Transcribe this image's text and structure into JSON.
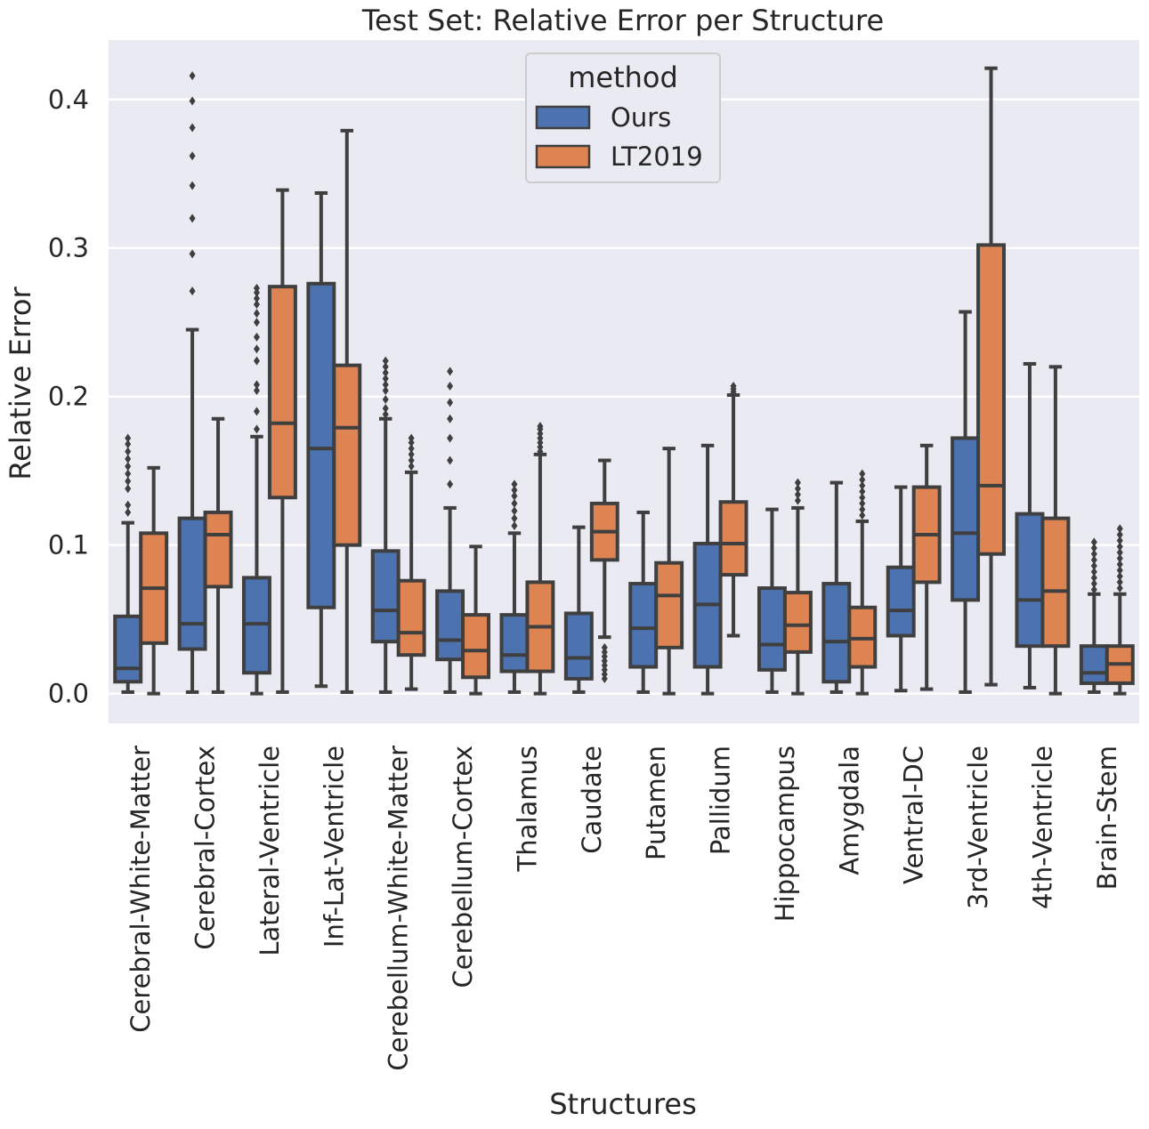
{
  "chart_data": {
    "type": "box",
    "title": "Test Set: Relative Error per Structure",
    "xlabel": "Structures",
    "ylabel": "Relative Error",
    "ylim": [
      -0.02,
      0.44
    ],
    "yticks": [
      0.0,
      0.1,
      0.2,
      0.3,
      0.4
    ],
    "ytick_labels": [
      "0.0",
      "0.1",
      "0.2",
      "0.3",
      "0.4"
    ],
    "grid": true,
    "legend": {
      "title": "method",
      "placement": "top-center",
      "entries": [
        "Ours",
        "LT2019"
      ]
    },
    "colors": {
      "Ours": "#4c72b0",
      "LT2019": "#dd8452",
      "background": "#eaeaf2",
      "line": "#3f3f3f"
    },
    "categories": [
      "Cerebral-White-Matter",
      "Cerebral-Cortex",
      "Lateral-Ventricle",
      "Inf-Lat-Ventricle",
      "Cerebellum-White-Matter",
      "Cerebellum-Cortex",
      "Thalamus",
      "Caudate",
      "Putamen",
      "Pallidum",
      "Hippocampus",
      "Amygdala",
      "Ventral-DC",
      "3rd-Ventricle",
      "4th-Ventricle",
      "Brain-Stem"
    ],
    "series": [
      {
        "name": "Ours",
        "boxes": [
          {
            "whislo": 0.001,
            "q1": 0.008,
            "med": 0.017,
            "q3": 0.052,
            "whishi": 0.115,
            "fliers": [
              0.122,
              0.127,
              0.138,
              0.143,
              0.148,
              0.153,
              0.158,
              0.163,
              0.168,
              0.172
            ]
          },
          {
            "whislo": 0.001,
            "q1": 0.03,
            "med": 0.047,
            "q3": 0.118,
            "whishi": 0.245,
            "fliers": [
              0.271,
              0.296,
              0.32,
              0.342,
              0.362,
              0.381,
              0.399,
              0.416
            ]
          },
          {
            "whislo": 0.0,
            "q1": 0.014,
            "med": 0.047,
            "q3": 0.078,
            "whishi": 0.173,
            "fliers": [
              0.178,
              0.19,
              0.204,
              0.208,
              0.224,
              0.232,
              0.24,
              0.25,
              0.256,
              0.262,
              0.266,
              0.27,
              0.273
            ]
          },
          {
            "whislo": 0.005,
            "q1": 0.058,
            "med": 0.165,
            "q3": 0.276,
            "whishi": 0.337,
            "fliers": []
          },
          {
            "whislo": 0.001,
            "q1": 0.035,
            "med": 0.056,
            "q3": 0.096,
            "whishi": 0.185,
            "fliers": [
              0.188,
              0.192,
              0.198,
              0.204,
              0.208,
              0.212,
              0.216,
              0.22,
              0.224
            ]
          },
          {
            "whislo": 0.001,
            "q1": 0.023,
            "med": 0.036,
            "q3": 0.069,
            "whishi": 0.125,
            "fliers": [
              0.141,
              0.157,
              0.172,
              0.185,
              0.196,
              0.207,
              0.217
            ]
          },
          {
            "whislo": 0.001,
            "q1": 0.015,
            "med": 0.026,
            "q3": 0.053,
            "whishi": 0.108,
            "fliers": [
              0.113,
              0.118,
              0.123,
              0.128,
              0.133,
              0.137,
              0.141
            ]
          },
          {
            "whislo": 0.001,
            "q1": 0.01,
            "med": 0.024,
            "q3": 0.054,
            "whishi": 0.112,
            "fliers": []
          },
          {
            "whislo": 0.001,
            "q1": 0.018,
            "med": 0.044,
            "q3": 0.074,
            "whishi": 0.122,
            "fliers": []
          },
          {
            "whislo": 0.0,
            "q1": 0.018,
            "med": 0.06,
            "q3": 0.101,
            "whishi": 0.167,
            "fliers": []
          },
          {
            "whislo": 0.001,
            "q1": 0.016,
            "med": 0.033,
            "q3": 0.071,
            "whishi": 0.124,
            "fliers": []
          },
          {
            "whislo": 0.001,
            "q1": 0.008,
            "med": 0.035,
            "q3": 0.074,
            "whishi": 0.142,
            "fliers": []
          },
          {
            "whislo": 0.002,
            "q1": 0.039,
            "med": 0.056,
            "q3": 0.085,
            "whishi": 0.139,
            "fliers": []
          },
          {
            "whislo": 0.001,
            "q1": 0.063,
            "med": 0.108,
            "q3": 0.172,
            "whishi": 0.257,
            "fliers": []
          },
          {
            "whislo": 0.004,
            "q1": 0.032,
            "med": 0.063,
            "q3": 0.121,
            "whishi": 0.222,
            "fliers": []
          },
          {
            "whislo": 0.001,
            "q1": 0.007,
            "med": 0.014,
            "q3": 0.032,
            "whishi": 0.067,
            "fliers": [
              0.07,
              0.074,
              0.078,
              0.082,
              0.086,
              0.09,
              0.094,
              0.098,
              0.102
            ]
          }
        ]
      },
      {
        "name": "LT2019",
        "boxes": [
          {
            "whislo": 0.0,
            "q1": 0.034,
            "med": 0.071,
            "q3": 0.108,
            "whishi": 0.152,
            "fliers": []
          },
          {
            "whislo": 0.001,
            "q1": 0.072,
            "med": 0.107,
            "q3": 0.122,
            "whishi": 0.185,
            "fliers": []
          },
          {
            "whislo": 0.001,
            "q1": 0.132,
            "med": 0.182,
            "q3": 0.274,
            "whishi": 0.339,
            "fliers": []
          },
          {
            "whislo": 0.001,
            "q1": 0.1,
            "med": 0.179,
            "q3": 0.221,
            "whishi": 0.379,
            "fliers": []
          },
          {
            "whislo": 0.003,
            "q1": 0.026,
            "med": 0.041,
            "q3": 0.076,
            "whishi": 0.149,
            "fliers": [
              0.153,
              0.157,
              0.161,
              0.165,
              0.169,
              0.172
            ]
          },
          {
            "whislo": 0.0,
            "q1": 0.011,
            "med": 0.029,
            "q3": 0.053,
            "whishi": 0.099,
            "fliers": []
          },
          {
            "whislo": 0.0,
            "q1": 0.015,
            "med": 0.045,
            "q3": 0.075,
            "whishi": 0.161,
            "fliers": [
              0.163,
              0.166,
              0.169,
              0.172,
              0.175,
              0.178,
              0.18
            ]
          },
          {
            "whislo": 0.038,
            "q1": 0.09,
            "med": 0.109,
            "q3": 0.128,
            "whishi": 0.157,
            "fliers": [
              0.01,
              0.013,
              0.016,
              0.019,
              0.022,
              0.025,
              0.028,
              0.031
            ]
          },
          {
            "whislo": 0.0,
            "q1": 0.031,
            "med": 0.066,
            "q3": 0.088,
            "whishi": 0.165,
            "fliers": []
          },
          {
            "whislo": 0.039,
            "q1": 0.08,
            "med": 0.101,
            "q3": 0.129,
            "whishi": 0.201,
            "fliers": [
              0.203,
              0.205,
              0.207
            ]
          },
          {
            "whislo": 0.0,
            "q1": 0.028,
            "med": 0.046,
            "q3": 0.068,
            "whishi": 0.125,
            "fliers": [
              0.13,
              0.134,
              0.138,
              0.142
            ]
          },
          {
            "whislo": 0.0,
            "q1": 0.018,
            "med": 0.037,
            "q3": 0.058,
            "whishi": 0.116,
            "fliers": [
              0.12,
              0.124,
              0.128,
              0.132,
              0.136,
              0.14,
              0.144,
              0.148
            ]
          },
          {
            "whislo": 0.003,
            "q1": 0.075,
            "med": 0.107,
            "q3": 0.139,
            "whishi": 0.167,
            "fliers": []
          },
          {
            "whislo": 0.006,
            "q1": 0.094,
            "med": 0.14,
            "q3": 0.302,
            "whishi": 0.421,
            "fliers": []
          },
          {
            "whislo": 0.0,
            "q1": 0.032,
            "med": 0.069,
            "q3": 0.118,
            "whishi": 0.22,
            "fliers": []
          },
          {
            "whislo": 0.0,
            "q1": 0.007,
            "med": 0.02,
            "q3": 0.032,
            "whishi": 0.067,
            "fliers": [
              0.071,
              0.075,
              0.079,
              0.083,
              0.087,
              0.091,
              0.095,
              0.099,
              0.103,
              0.107,
              0.111
            ]
          }
        ]
      }
    ]
  }
}
